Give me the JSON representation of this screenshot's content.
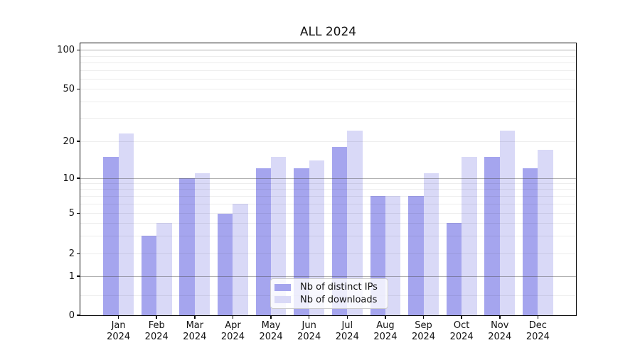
{
  "title": "ALL 2024",
  "chart_data": {
    "type": "bar",
    "title": "ALL 2024",
    "categories": [
      "Jan",
      "Feb",
      "Mar",
      "Apr",
      "May",
      "Jun",
      "Jul",
      "Aug",
      "Sep",
      "Oct",
      "Nov",
      "Dec"
    ],
    "year": "2024",
    "series": [
      {
        "name": "Nb of distinct IPs",
        "color": "#a5a5ee",
        "values": [
          15,
          3,
          10,
          5,
          12,
          12,
          18,
          7,
          7,
          4,
          15,
          12
        ]
      },
      {
        "name": "Nb of downloads",
        "color": "#d9d9f7",
        "values": [
          23,
          4,
          11,
          6,
          15,
          14,
          24,
          7,
          11,
          15,
          24,
          17
        ]
      }
    ],
    "ylabel": "",
    "xlabel": "",
    "yscale": "symlog",
    "ylim": [
      0,
      113
    ],
    "yticks_labeled": [
      0,
      1,
      2,
      5,
      10,
      20,
      50,
      100
    ],
    "yticks_major": [
      1,
      10,
      100
    ],
    "yticks_minor_unlabeled": [
      0.5,
      3,
      4,
      6,
      7,
      8,
      9,
      30,
      40,
      60,
      70,
      80,
      90
    ],
    "grid": "on",
    "legend_position": "lower center"
  },
  "legend": {
    "items": [
      {
        "label": "Nb of distinct IPs"
      },
      {
        "label": "Nb of downloads"
      }
    ]
  }
}
